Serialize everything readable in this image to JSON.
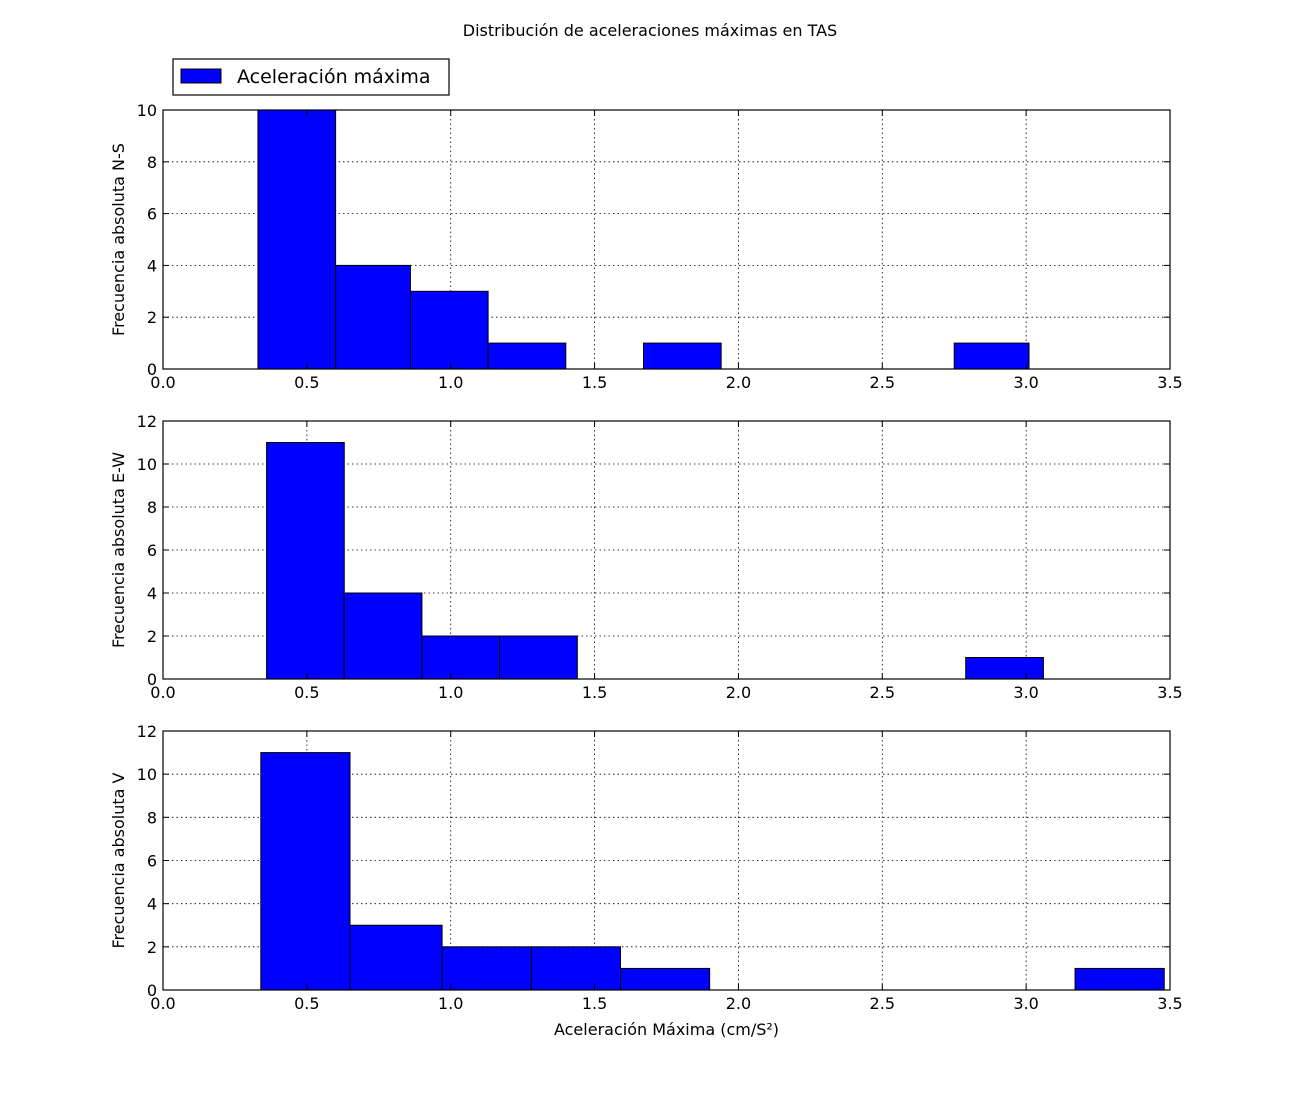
{
  "figure": {
    "title": "Distribución de aceleraciones máximas en TAS",
    "legend_label": "Aceleración máxima",
    "legend_placement": "top-left, above first panel",
    "bar_color": "#0000ff",
    "edge_color": "#000000"
  },
  "chart_data": [
    {
      "type": "bar",
      "subtype": "histogram",
      "ylabel": "Frecuencia absoluta N-S",
      "xlabel": "",
      "xlim": [
        0,
        3.5
      ],
      "ylim": [
        0,
        10
      ],
      "xticks": [
        "0.0",
        "0.5",
        "1.0",
        "1.5",
        "2.0",
        "2.5",
        "3.0",
        "3.5"
      ],
      "yticks": [
        "0",
        "2",
        "4",
        "6",
        "8",
        "10"
      ],
      "grid": true,
      "bins": [
        {
          "start": 0.33,
          "end": 0.6,
          "count": 10
        },
        {
          "start": 0.6,
          "end": 0.86,
          "count": 4
        },
        {
          "start": 0.86,
          "end": 1.13,
          "count": 3
        },
        {
          "start": 1.13,
          "end": 1.4,
          "count": 1
        },
        {
          "start": 1.67,
          "end": 1.94,
          "count": 1
        },
        {
          "start": 2.75,
          "end": 3.01,
          "count": 1
        }
      ]
    },
    {
      "type": "bar",
      "subtype": "histogram",
      "ylabel": "Frecuencia absoluta E-W",
      "xlabel": "",
      "xlim": [
        0,
        3.5
      ],
      "ylim": [
        0,
        12
      ],
      "xticks": [
        "0.0",
        "0.5",
        "1.0",
        "1.5",
        "2.0",
        "2.5",
        "3.0",
        "3.5"
      ],
      "yticks": [
        "0",
        "2",
        "4",
        "6",
        "8",
        "10",
        "12"
      ],
      "grid": true,
      "bins": [
        {
          "start": 0.36,
          "end": 0.63,
          "count": 11
        },
        {
          "start": 0.63,
          "end": 0.9,
          "count": 4
        },
        {
          "start": 0.9,
          "end": 1.17,
          "count": 2
        },
        {
          "start": 1.17,
          "end": 1.44,
          "count": 2
        },
        {
          "start": 2.79,
          "end": 3.06,
          "count": 1
        }
      ]
    },
    {
      "type": "bar",
      "subtype": "histogram",
      "ylabel": "Frecuencia absoluta V",
      "xlabel": "Aceleración Máxima (cm/S²)",
      "xlim": [
        0,
        3.5
      ],
      "ylim": [
        0,
        12
      ],
      "xticks": [
        "0.0",
        "0.5",
        "1.0",
        "1.5",
        "2.0",
        "2.5",
        "3.0",
        "3.5"
      ],
      "yticks": [
        "0",
        "2",
        "4",
        "6",
        "8",
        "10",
        "12"
      ],
      "grid": true,
      "bins": [
        {
          "start": 0.34,
          "end": 0.65,
          "count": 11
        },
        {
          "start": 0.65,
          "end": 0.97,
          "count": 3
        },
        {
          "start": 0.97,
          "end": 1.28,
          "count": 2
        },
        {
          "start": 1.28,
          "end": 1.59,
          "count": 2
        },
        {
          "start": 1.59,
          "end": 1.9,
          "count": 1
        },
        {
          "start": 3.17,
          "end": 3.48,
          "count": 1
        }
      ]
    }
  ]
}
